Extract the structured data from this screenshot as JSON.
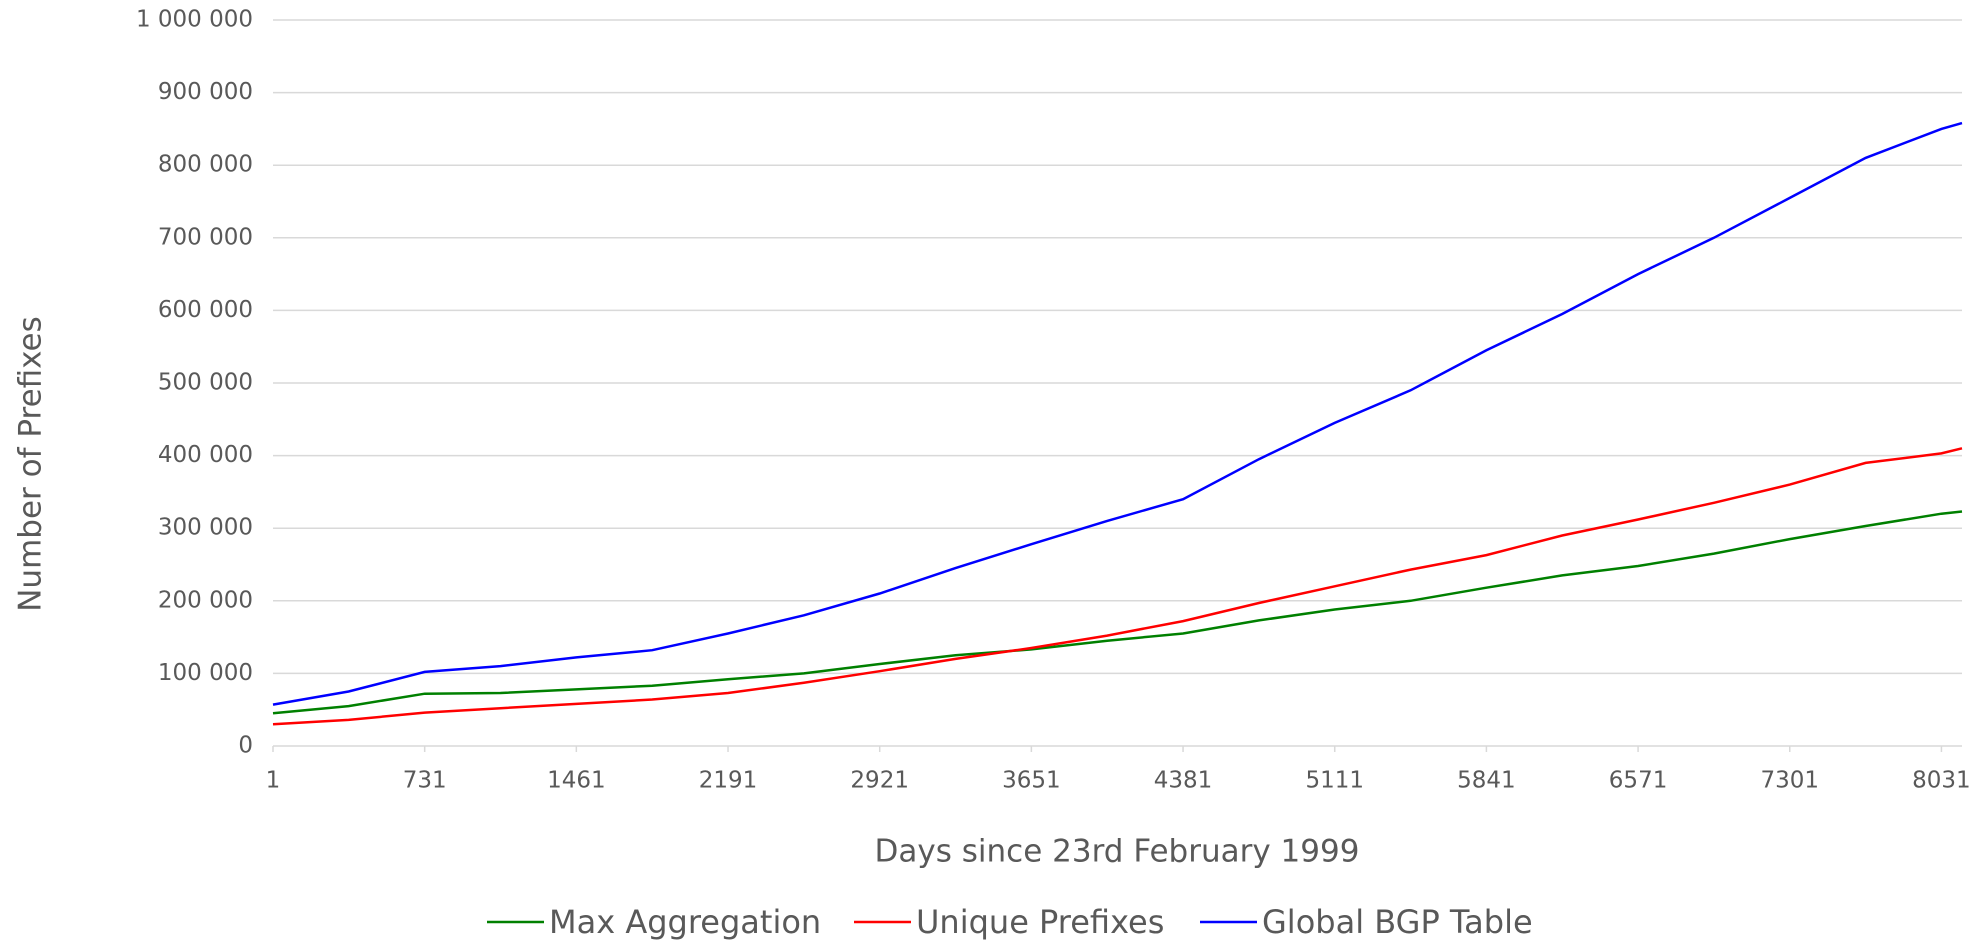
{
  "chart_data": {
    "type": "line",
    "x_label": "Days since 23rd February 1999",
    "y_label": "Number of Prefixes",
    "x": [
      1,
      365,
      731,
      1096,
      1461,
      1826,
      2191,
      2556,
      2921,
      3286,
      3651,
      4016,
      4381,
      4746,
      5111,
      5476,
      5841,
      6206,
      6571,
      6936,
      7301,
      7666,
      8031,
      8130
    ],
    "series": [
      {
        "name": "Max Aggregation",
        "color": "#008000",
        "values": [
          45000,
          55000,
          72000,
          73000,
          78000,
          83000,
          92000,
          100000,
          113000,
          125000,
          133000,
          145000,
          155000,
          173000,
          188000,
          200000,
          218000,
          235000,
          248000,
          265000,
          285000,
          303000,
          320000,
          323000
        ]
      },
      {
        "name": "Unique Prefixes",
        "color": "#ff0000",
        "values": [
          30000,
          36000,
          46000,
          52000,
          58000,
          64000,
          73000,
          87000,
          103000,
          120000,
          135000,
          152000,
          172000,
          197000,
          220000,
          243000,
          263000,
          290000,
          312000,
          335000,
          360000,
          390000,
          403000,
          410000
        ]
      },
      {
        "name": "Global BGP Table",
        "color": "#0000ff",
        "values": [
          57000,
          75000,
          102000,
          110000,
          122000,
          132000,
          155000,
          180000,
          210000,
          245000,
          278000,
          310000,
          340000,
          395000,
          445000,
          490000,
          545000,
          595000,
          650000,
          700000,
          755000,
          810000,
          850000,
          858000
        ]
      }
    ],
    "xlim": [
      1,
      8130
    ],
    "xticks": [
      1,
      731,
      1461,
      2191,
      2921,
      3651,
      4381,
      5111,
      5841,
      6571,
      7301,
      8031
    ],
    "ylim": [
      0,
      1000000
    ],
    "yticks": [
      0,
      {
        "value": 100000,
        "label": "100 000"
      },
      {
        "value": 200000,
        "label": "200 000"
      },
      {
        "value": 300000,
        "label": "300 000"
      },
      {
        "value": 400000,
        "label": "400 000"
      },
      {
        "value": 500000,
        "label": "500 000"
      },
      {
        "value": 600000,
        "label": "600 000"
      },
      {
        "value": 700000,
        "label": "700 000"
      },
      {
        "value": 800000,
        "label": "800 000"
      },
      {
        "value": 900000,
        "label": "900 000"
      },
      {
        "value": 1000000,
        "label": "1 000 000"
      }
    ],
    "grid": true,
    "legend": "bottom"
  }
}
